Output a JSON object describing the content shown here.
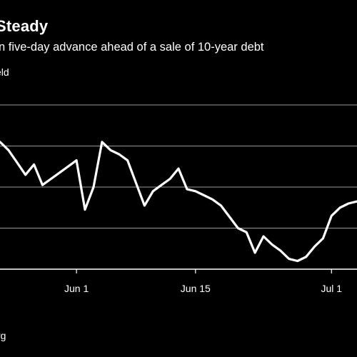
{
  "header": {
    "title": "Steady",
    "subtitle": "n five-day advance ahead of a sale of 10-year debt",
    "unit": "eld"
  },
  "footer": {
    "source": "rg"
  },
  "colors": {
    "background": "#000000",
    "line": "#ffffff",
    "grid": "#9a9a9a"
  },
  "chart_data": {
    "type": "line",
    "title": "Steady",
    "xlabel": "",
    "ylabel": "",
    "x_ticks": [
      {
        "label": "Jun 1",
        "x": 6
      },
      {
        "label": "Jun 15",
        "x": 20
      },
      {
        "label": "Jul 1",
        "x": 36
      }
    ],
    "grid": true,
    "gridlines": [
      0,
      1,
      2,
      3,
      4
    ],
    "ylim": [
      0,
      4
    ],
    "xlim": [
      -3,
      39
    ],
    "series": [
      {
        "name": "",
        "x": [
          -3,
          -2,
          -1,
          0,
          1,
          2,
          4,
          5,
          6,
          7,
          8,
          9,
          10,
          11,
          12,
          13,
          14,
          15,
          16,
          17,
          18,
          19,
          20,
          21,
          22,
          23,
          25,
          26,
          27,
          28,
          29,
          30,
          31,
          32,
          33,
          34,
          35,
          36,
          37,
          38,
          39
        ],
        "y": [
          3.1,
          2.9,
          2.6,
          2.3,
          2.55,
          2.05,
          2.35,
          2.5,
          2.65,
          1.45,
          2.0,
          3.1,
          2.9,
          2.8,
          2.65,
          2.1,
          1.55,
          1.9,
          2.05,
          2.2,
          2.45,
          1.95,
          1.9,
          1.8,
          1.7,
          1.55,
          1.0,
          0.9,
          0.4,
          0.8,
          0.6,
          0.45,
          0.25,
          0.2,
          0.3,
          0.55,
          0.75,
          1.3,
          1.5,
          1.6,
          1.65
        ]
      }
    ]
  }
}
